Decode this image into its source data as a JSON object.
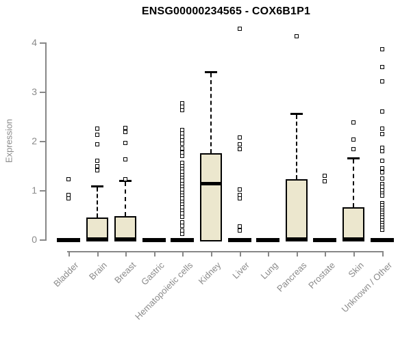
{
  "chart_data": {
    "type": "boxplot",
    "title": "ENSG00000234565 - COX6B1P1",
    "ylabel": "Expression",
    "xlabel": "",
    "ylim": [
      0,
      4
    ],
    "yticks": [
      0,
      1,
      2,
      3,
      4
    ],
    "grid": false,
    "legend_position": "none",
    "colors": {
      "box_fill": "#ECE7CE",
      "box_border": "#000000",
      "axis_line": "#878787",
      "axis_text": "#8a8a8a",
      "title_text": "#000000"
    },
    "categories": [
      "Bladder",
      "Brain",
      "Breast",
      "Gastric",
      "Hematopoietic cells",
      "Kidney",
      "Liver",
      "Lung",
      "Pancreas",
      "Prostate",
      "Skin",
      "Unknown / Other"
    ],
    "boxes": [
      {
        "category": "Bladder",
        "q1": 0,
        "median": 0,
        "q3": 0,
        "whisker_low": 0,
        "whisker_high": 0,
        "outliers": [
          1.22,
          0.9,
          0.83
        ]
      },
      {
        "category": "Brain",
        "q1": 0,
        "median": 0,
        "q3": 0.45,
        "whisker_low": 0,
        "whisker_high": 1.08,
        "outliers": [
          2.25,
          2.13,
          1.93,
          1.6,
          1.48,
          1.41
        ]
      },
      {
        "category": "Breast",
        "q1": 0,
        "median": 0,
        "q3": 0.47,
        "whisker_low": 0,
        "whisker_high": 1.2,
        "outliers": [
          2.26,
          2.18,
          1.96,
          1.63,
          1.22
        ]
      },
      {
        "category": "Gastric",
        "q1": 0,
        "median": 0,
        "q3": 0,
        "whisker_low": 0,
        "whisker_high": 0,
        "outliers": []
      },
      {
        "category": "Hematopoietic cells",
        "q1": 0,
        "median": 0,
        "q3": 0,
        "whisker_low": 0,
        "whisker_high": 0,
        "outliers": [
          2.77,
          2.7,
          2.63,
          2.22,
          2.15,
          2.08,
          2.01,
          1.94,
          1.85,
          1.77,
          1.69,
          1.56,
          1.49,
          1.43,
          1.37,
          1.31,
          1.25,
          1.19,
          1.13,
          1.07,
          1.01,
          0.95,
          0.89,
          0.83,
          0.77,
          0.71,
          0.65,
          0.59,
          0.53,
          0.46,
          0.35,
          0.28,
          0.18,
          0.11
        ]
      },
      {
        "category": "Kidney",
        "q1": 0,
        "median": 1.12,
        "q3": 1.75,
        "whisker_low": 0,
        "whisker_high": 3.4,
        "outliers": []
      },
      {
        "category": "Liver",
        "q1": 0,
        "median": 0,
        "q3": 0,
        "whisker_low": 0,
        "whisker_high": 0,
        "outliers": [
          4.28,
          2.07,
          1.93,
          1.83,
          1.01,
          0.91,
          0.83,
          0.26,
          0.18
        ]
      },
      {
        "category": "Lung",
        "q1": 0,
        "median": 0,
        "q3": 0,
        "whisker_low": 0,
        "whisker_high": 0,
        "outliers": []
      },
      {
        "category": "Pancreas",
        "q1": 0,
        "median": 0,
        "q3": 1.22,
        "whisker_low": 0,
        "whisker_high": 2.56,
        "outliers": [
          4.12
        ]
      },
      {
        "category": "Prostate",
        "q1": 0,
        "median": 0,
        "q3": 0,
        "whisker_low": 0,
        "whisker_high": 0,
        "outliers": [
          1.29,
          1.18
        ]
      },
      {
        "category": "Skin",
        "q1": 0,
        "median": 0,
        "q3": 0.66,
        "whisker_low": 0,
        "whisker_high": 1.66,
        "outliers": [
          2.37,
          2.03,
          1.83
        ]
      },
      {
        "category": "Unknown / Other",
        "q1": 0,
        "median": 0,
        "q3": 0,
        "whisker_low": 0,
        "whisker_high": 0,
        "outliers": [
          3.86,
          3.5,
          3.21,
          2.6,
          2.25,
          2.14,
          1.86,
          1.79,
          1.6,
          1.44,
          1.36,
          1.23,
          1.13,
          1.07,
          1.0,
          0.93,
          0.89,
          0.74,
          0.69,
          0.64,
          0.59,
          0.54,
          0.49,
          0.44,
          0.39,
          0.34,
          0.29,
          0.24,
          0.19
        ]
      }
    ]
  }
}
